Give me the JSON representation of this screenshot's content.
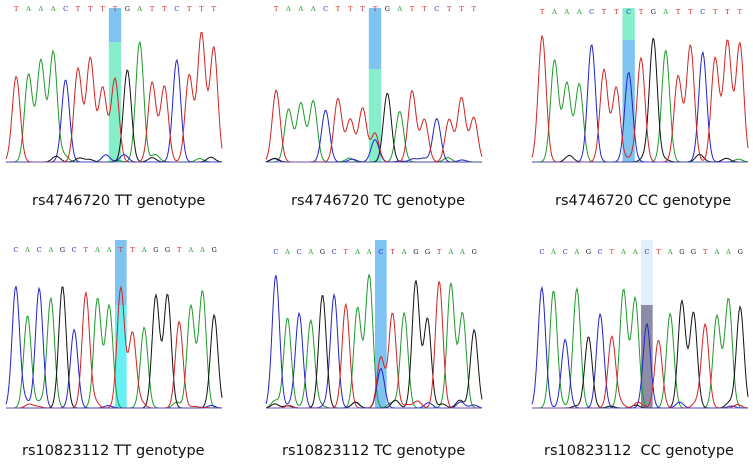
{
  "colors": {
    "A": "#1e9a2a",
    "C": "#2323c8",
    "G": "#111111",
    "T": "#d22323",
    "highlight_blue": "#7fc3f2",
    "highlight_green": "#86efc9",
    "highlight_cyan": "#66f0f3",
    "highlight_pale": "#dff0fa",
    "highlight_grey": "#8c8ca6"
  },
  "panels": [
    {
      "id": "rs4746720-tt",
      "sequence": "TAAACTTTTGATTCTTT",
      "highlight_index": 8,
      "highlight_top": "highlight_blue",
      "highlight_bottom": "highlight_green",
      "caption": "rs4746720 TT genotype"
    },
    {
      "id": "rs4746720-tc",
      "sequence": "TAAACTTTTGATTCTTT",
      "highlight_index": 8,
      "highlight_top": "highlight_blue",
      "highlight_bottom": "highlight_green",
      "caption": "rs4746720 TC genotype"
    },
    {
      "id": "rs4746720-cc",
      "sequence": "TAAACTTCTGATTCTTT",
      "highlight_index": 7,
      "highlight_top": "highlight_green",
      "highlight_bottom": "highlight_blue",
      "caption": "rs4746720 CC genotype"
    },
    {
      "id": "rs10823112-tt",
      "sequence": "CACAGCTAATTAGGTAAG",
      "highlight_index": 9,
      "highlight_top": "highlight_blue",
      "highlight_bottom": "highlight_cyan",
      "caption": "rs10823112 TT genotype"
    },
    {
      "id": "rs10823112-tc",
      "sequence": "CACAGCTAACTAGGTAAG",
      "highlight_index": 9,
      "highlight_top": "highlight_blue",
      "highlight_bottom": "highlight_blue",
      "caption": "rs10823112 TC genotype"
    },
    {
      "id": "rs10823112-cc",
      "sequence": "CACAGCTAACTAGGTAAG",
      "highlight_index": 9,
      "highlight_top": "highlight_pale",
      "highlight_bottom": "highlight_grey",
      "caption": "rs10823112  CC genotype"
    }
  ]
}
